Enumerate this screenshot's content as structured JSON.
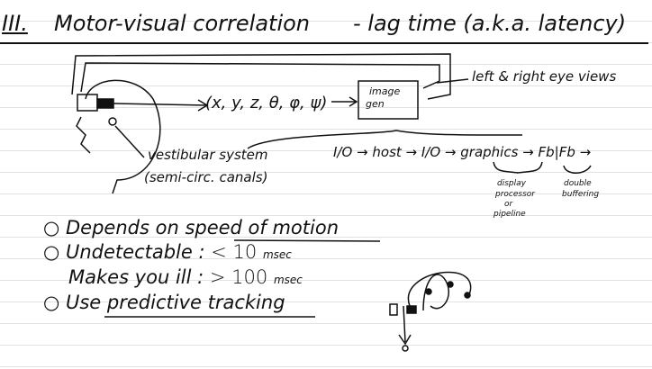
{
  "heading": {
    "numeral": "III.",
    "title": "Motor-visual correlation",
    "subtitle": "- lag time (a.k.a. latency)"
  },
  "diagram": {
    "coords": "(x, y, z, θ, φ, ψ)",
    "image_gen": [
      "image",
      "gen"
    ],
    "eye_views": "left & right eye views",
    "vestibular": [
      "vestibular system",
      "(semi-circ. canals)"
    ],
    "pipeline": "I/O → host → I/O → graphics → Fb|Fb →",
    "graphics_note": [
      "display",
      "processor",
      "or",
      "pipeline"
    ],
    "fb_note": [
      "double",
      "buffering"
    ]
  },
  "bullets": [
    {
      "prefix": "Depends on ",
      "emph": "speed of motion"
    },
    {
      "label": "Undetectable :",
      "value": "< 10",
      "unit": "msec"
    },
    {
      "label": "Makes you ill :",
      "value": "> 100",
      "unit": "msec"
    },
    {
      "prefix": "Use ",
      "emph": "predictive tracking"
    }
  ]
}
